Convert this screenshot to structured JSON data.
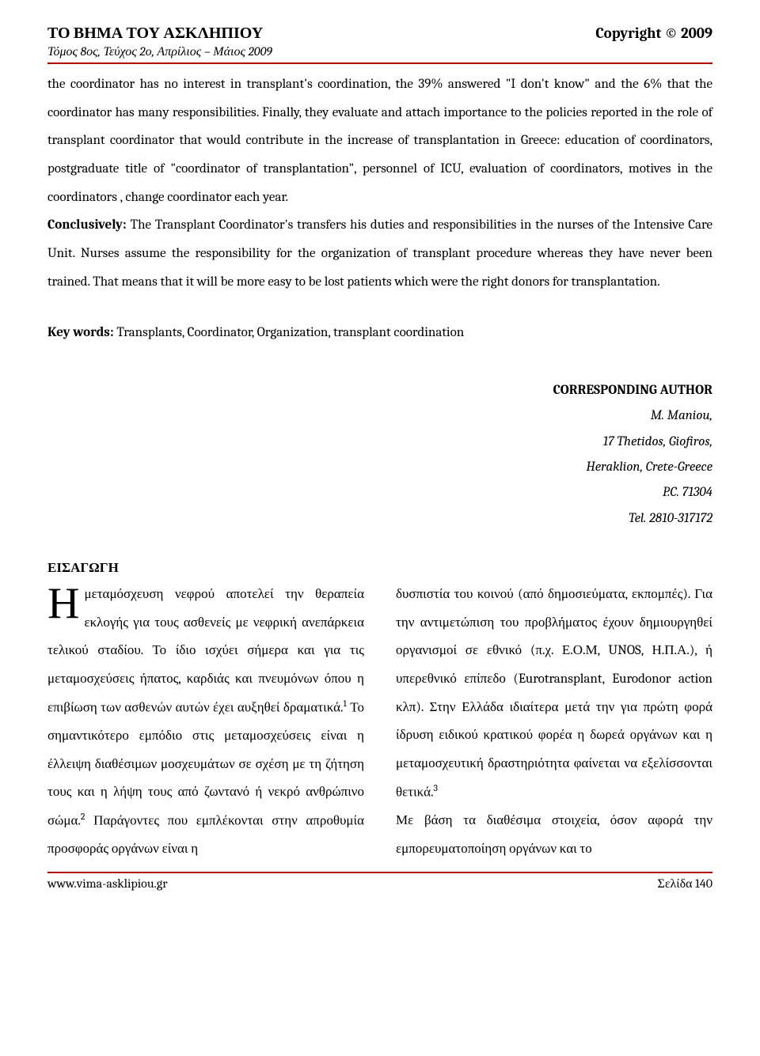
{
  "header": {
    "journal_title": "ΤΟ ΒΗΜΑ ΤΟΥ ΑΣΚΛΗΠΙΟΥ",
    "copyright": "Copyright © 2009",
    "issue_line": "Τόμος 8ος, Τεύχος 2ο, Απρίλιος – Μάιος 2009"
  },
  "body_para1": "the coordinator has no interest in transplant's coordination, the 39% answered \"I don't know\" and the 6% that the coordinator has many responsibilities. Finally, they evaluate and attach importance to the policies reported in the role of transplant coordinator that would contribute  in the increase of transplantation in Greece: education of coordinators, postgraduate title of  \"coordinator of transplantation\", personnel of ICU, evaluation of coordinators, motives in the coordinators , change coordinator each year.",
  "conclusively_label": "Conclusively:",
  "conclusively_text": "  The Transplant Coordinator's transfers his duties and responsibilities in the nurses of the Intensive Care Unit. Nurses assume the responsibility for the organization of transplant procedure whereas they have never been trained. That means that it will be more easy to be lost patients which were the right donors for transplantation.",
  "keywords_label": "Key words:",
  "keywords_text": " Transplants, Coordinator, Organization, transplant coordination",
  "corresponding": {
    "title": "CORRESPONDING AUTHOR",
    "name": "M. Maniou,",
    "address1": "17 Thetidos, Giofiros,",
    "address2": "Heraklion, Crete-Greece",
    "pc": "P.C. 71304",
    "tel": "Tel. 2810-317172"
  },
  "section_title": "ΕΙΣΑΓΩΓΗ",
  "dropcap": "Η",
  "col1_pre": "μεταμόσχευση νεφρού αποτελεί την θεραπεία εκλογής για τους ασθενείς με νεφρική ανεπάρκεια τελικού σταδίου. Το ίδιο ισχύει σήμερα και για τις μεταμοσχεύσεις ήπατος, καρδιάς και πνευμόνων όπου η επιβίωση των ασθενών αυτών έχει αυξηθεί δραματικά.",
  "col1_post": " Το σημαντικότερο εμπόδιο στις μεταμοσχεύσεις είναι η έλλειψη διαθέσιμων μοσχευμάτων σε σχέση με τη ζήτηση τους και η λήψη τους από ζωντανό ή νεκρό ανθρώπινο σώμα.",
  "col1_post2": " Παράγοντες που εμπλέκονται στην απροθυμία προσφοράς οργάνων είναι η",
  "col2_pre": "δυσπιστία του κοινού (από δημοσιεύματα, εκπομπές). Για την αντιμετώπιση του προβλήματος έχουν δημιουργηθεί οργανισμοί σε εθνικό (π.χ. Ε.Ο.Μ, UNOS, Η.Π.Α.), ή υπερεθνικό επίπεδο (Eurotransplant, Eurodonor action κλπ). Στην Ελλάδα ιδιαίτερα μετά την για πρώτη φορά ίδρυση ειδικού κρατικού φορέα η δωρεά οργάνων και η μεταμοσχευτική δραστηριότητα φαίνεται να εξελίσσονται θετικά.",
  "col2_post": "Με βάση τα διαθέσιμα στοιχεία, όσον αφορά την εμπορευματοποίηση οργάνων και το",
  "sup1": "1",
  "sup2": "2",
  "sup3": "3",
  "footer": {
    "url": "www.vima-asklipiou.gr",
    "page": "Σελίδα 140"
  }
}
